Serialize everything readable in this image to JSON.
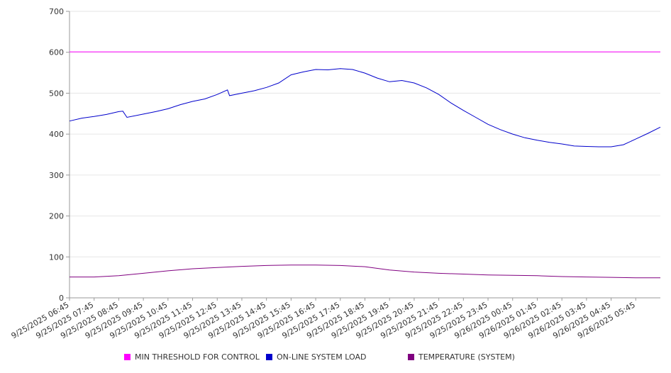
{
  "chart_data": {
    "type": "line",
    "y_ticks": [
      0,
      100,
      200,
      300,
      400,
      500,
      600,
      700
    ],
    "ylim": [
      0,
      700
    ],
    "grid": true,
    "legend_placement": "bottom",
    "x_tick_labels": [
      "9/25/2025 06:45",
      "9/25/2025 07:45",
      "9/25/2025 08:45",
      "9/25/2025 09:45",
      "9/25/2025 10:45",
      "9/25/2025 11:45",
      "9/25/2025 12:45",
      "9/25/2025 13:45",
      "9/25/2025 14:45",
      "9/25/2025 15:45",
      "9/25/2025 16:45",
      "9/25/2025 17:45",
      "9/25/2025 18:45",
      "9/25/2025 19:45",
      "9/25/2025 20:45",
      "9/25/2025 21:45",
      "9/25/2025 22:45",
      "9/25/2025 23:45",
      "9/26/2025 00:45",
      "9/26/2025 01:45",
      "9/26/2025 02:45",
      "9/26/2025 03:45",
      "9/26/2025 04:45",
      "9/26/2025 05:45"
    ],
    "x_range": [
      "9/25/2025 06:45",
      "9/26/2025 06:45"
    ],
    "series": [
      {
        "name": "MIN THRESHOLD FOR CONTROL",
        "color": "#ff00ff",
        "points": [
          [
            "9/25/2025 06:45",
            601
          ],
          [
            "9/26/2025 06:45",
            601
          ]
        ]
      },
      {
        "name": "ON-LINE SYSTEM LOAD",
        "color": "#0000cc",
        "points": [
          [
            "9/25/2025 06:45",
            432
          ],
          [
            "9/25/2025 07:15",
            439
          ],
          [
            "9/25/2025 07:45",
            443
          ],
          [
            "9/25/2025 08:15",
            448
          ],
          [
            "9/25/2025 08:45",
            455
          ],
          [
            "9/25/2025 08:55",
            456
          ],
          [
            "9/25/2025 09:05",
            441
          ],
          [
            "9/25/2025 09:45",
            449
          ],
          [
            "9/25/2025 10:15",
            455
          ],
          [
            "9/25/2025 10:45",
            462
          ],
          [
            "9/25/2025 11:15",
            472
          ],
          [
            "9/25/2025 11:45",
            480
          ],
          [
            "9/25/2025 12:15",
            486
          ],
          [
            "9/25/2025 12:45",
            497
          ],
          [
            "9/25/2025 13:10",
            508
          ],
          [
            "9/25/2025 13:15",
            494
          ],
          [
            "9/25/2025 13:45",
            500
          ],
          [
            "9/25/2025 14:15",
            506
          ],
          [
            "9/25/2025 14:45",
            514
          ],
          [
            "9/25/2025 15:15",
            525
          ],
          [
            "9/25/2025 15:45",
            545
          ],
          [
            "9/25/2025 16:15",
            552
          ],
          [
            "9/25/2025 16:45",
            558
          ],
          [
            "9/25/2025 17:15",
            557
          ],
          [
            "9/25/2025 17:45",
            560
          ],
          [
            "9/25/2025 18:15",
            558
          ],
          [
            "9/25/2025 18:45",
            549
          ],
          [
            "9/25/2025 19:15",
            537
          ],
          [
            "9/25/2025 19:45",
            528
          ],
          [
            "9/25/2025 20:15",
            531
          ],
          [
            "9/25/2025 20:45",
            525
          ],
          [
            "9/25/2025 21:15",
            513
          ],
          [
            "9/25/2025 21:45",
            497
          ],
          [
            "9/25/2025 22:15",
            476
          ],
          [
            "9/25/2025 22:45",
            458
          ],
          [
            "9/25/2025 23:15",
            441
          ],
          [
            "9/25/2025 23:45",
            424
          ],
          [
            "9/26/2025 00:15",
            411
          ],
          [
            "9/26/2025 00:45",
            400
          ],
          [
            "9/26/2025 01:15",
            391
          ],
          [
            "9/26/2025 01:45",
            385
          ],
          [
            "9/26/2025 02:15",
            380
          ],
          [
            "9/26/2025 02:45",
            376
          ],
          [
            "9/26/2025 03:15",
            371
          ],
          [
            "9/26/2025 03:45",
            370
          ],
          [
            "9/26/2025 04:15",
            369
          ],
          [
            "9/26/2025 04:45",
            369
          ],
          [
            "9/26/2025 05:15",
            374
          ],
          [
            "9/26/2025 05:45",
            388
          ],
          [
            "9/26/2025 06:15",
            402
          ],
          [
            "9/26/2025 06:45",
            417
          ]
        ]
      },
      {
        "name": "TEMPERATURE (SYSTEM)",
        "color": "#800080",
        "points": [
          [
            "9/25/2025 06:45",
            51
          ],
          [
            "9/25/2025 07:45",
            51
          ],
          [
            "9/25/2025 08:45",
            54
          ],
          [
            "9/25/2025 09:45",
            60
          ],
          [
            "9/25/2025 10:45",
            66
          ],
          [
            "9/25/2025 11:45",
            71
          ],
          [
            "9/25/2025 12:45",
            74
          ],
          [
            "9/25/2025 13:45",
            77
          ],
          [
            "9/25/2025 14:45",
            79
          ],
          [
            "9/25/2025 15:45",
            80
          ],
          [
            "9/25/2025 16:45",
            80
          ],
          [
            "9/25/2025 17:45",
            79
          ],
          [
            "9/25/2025 18:45",
            76
          ],
          [
            "9/25/2025 19:45",
            68
          ],
          [
            "9/25/2025 20:45",
            63
          ],
          [
            "9/25/2025 21:45",
            60
          ],
          [
            "9/25/2025 22:45",
            58
          ],
          [
            "9/25/2025 23:45",
            56
          ],
          [
            "9/26/2025 00:45",
            55
          ],
          [
            "9/26/2025 01:45",
            54
          ],
          [
            "9/26/2025 02:45",
            52
          ],
          [
            "9/26/2025 03:45",
            51
          ],
          [
            "9/26/2025 04:45",
            50
          ],
          [
            "9/26/2025 05:45",
            49
          ],
          [
            "9/26/2025 06:45",
            49
          ]
        ]
      }
    ]
  }
}
